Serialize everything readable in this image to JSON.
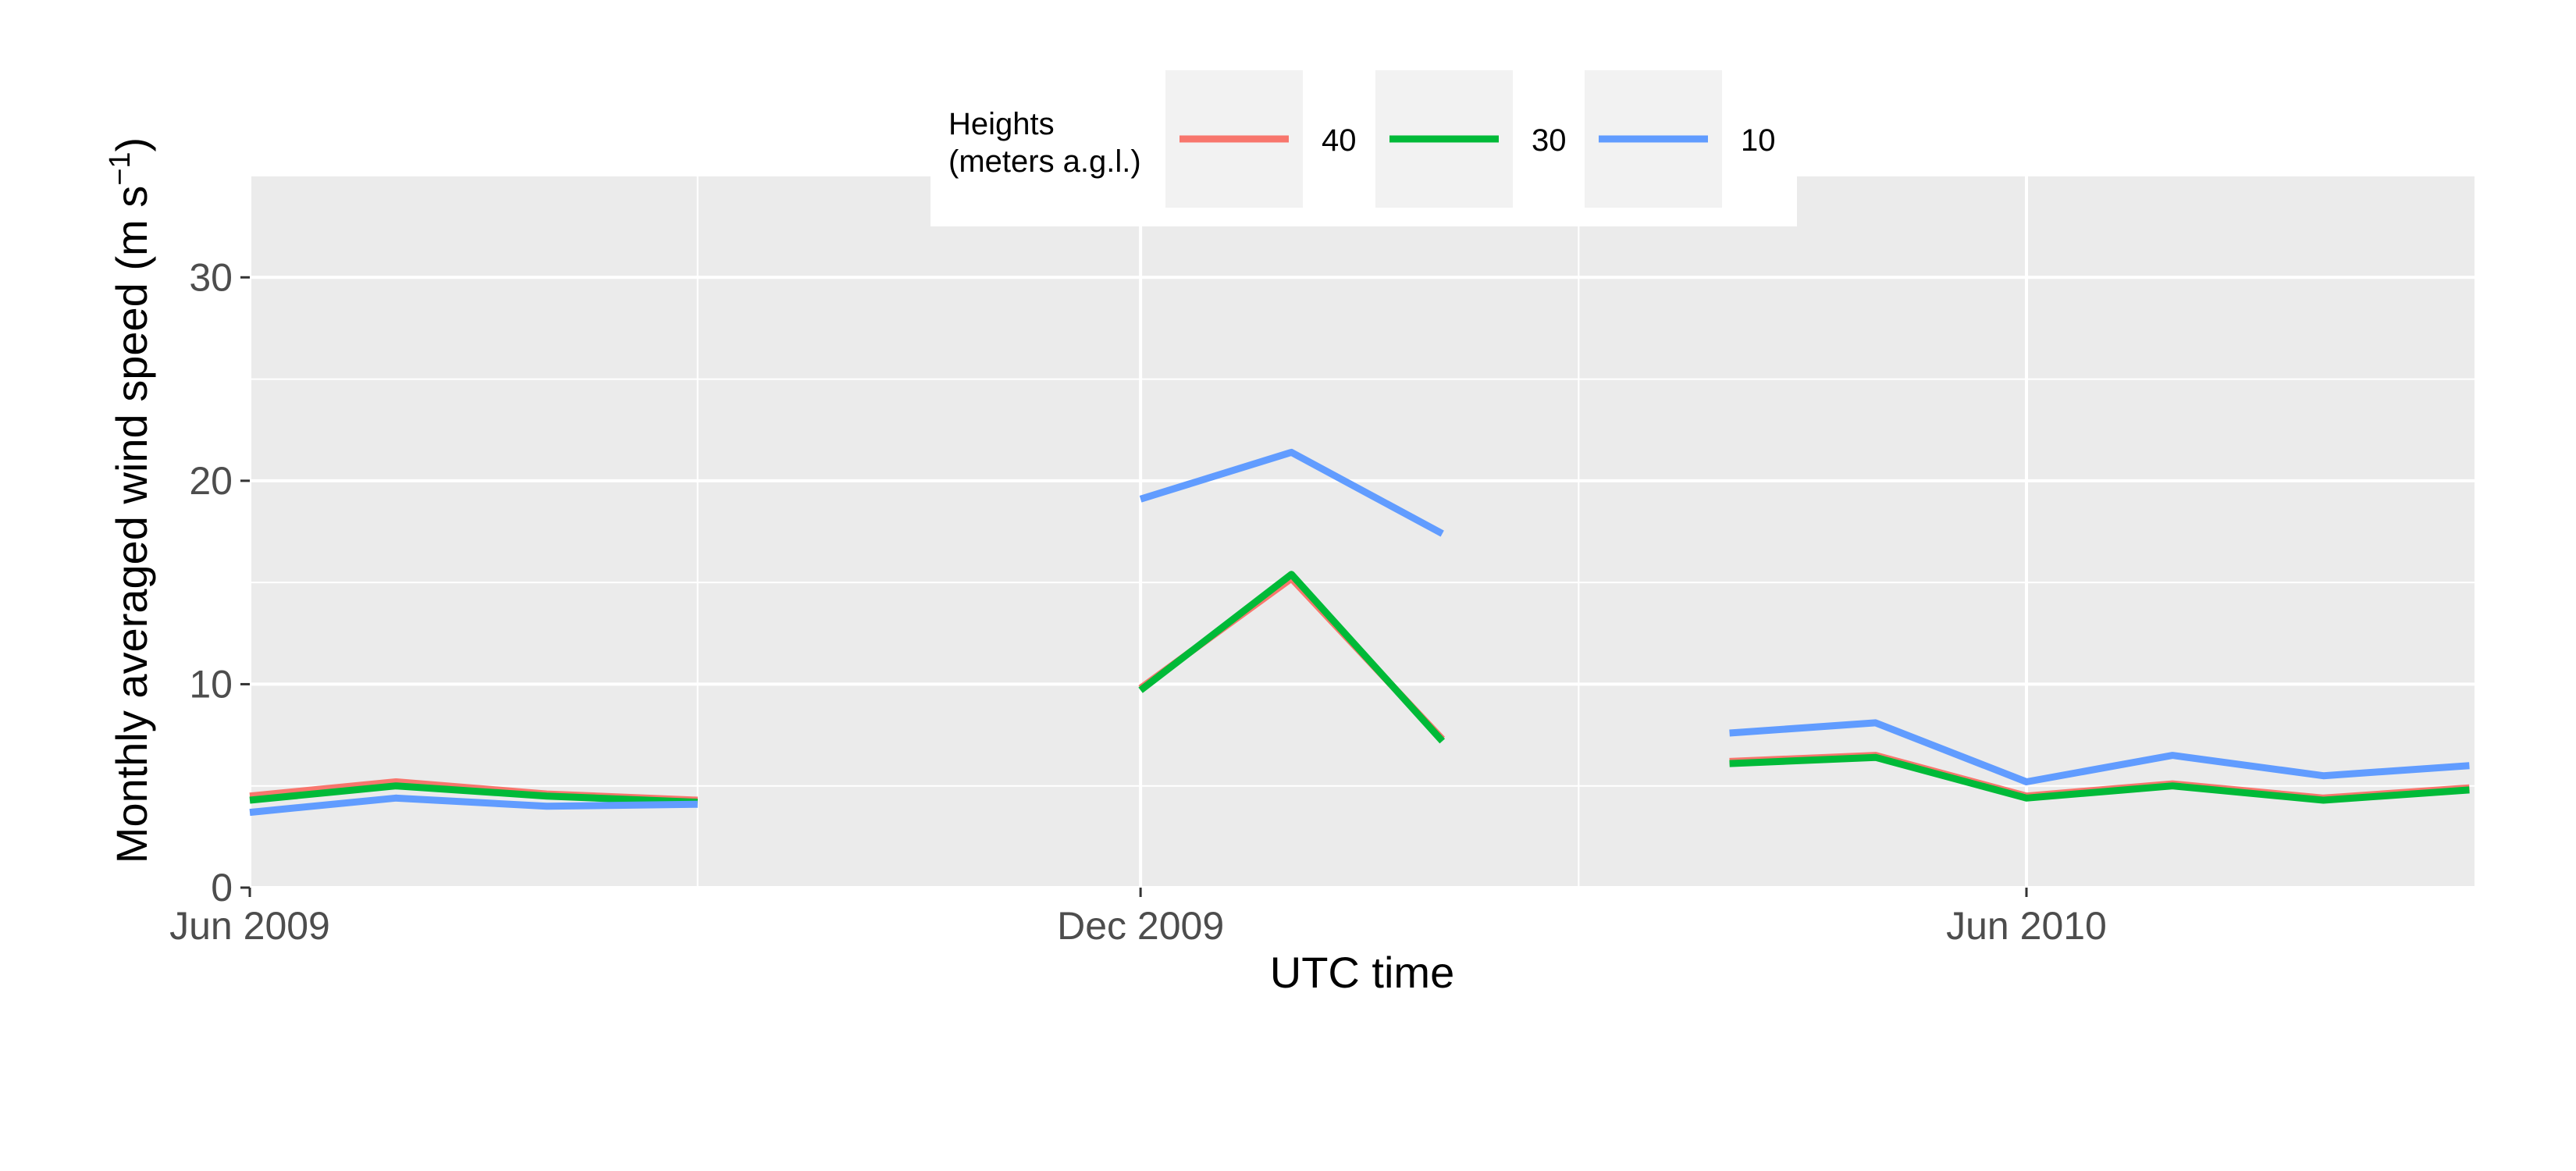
{
  "chart_data": {
    "type": "line",
    "title": "",
    "xlabel": "UTC time",
    "ylabel_main": "Monthly averaged wind speed (m s",
    "ylabel_sup": "−1",
    "ylabel_end": ")",
    "ylim": [
      0,
      35
    ],
    "yticks": [
      0,
      10,
      20,
      30
    ],
    "ytick_labels": [
      "0",
      "10",
      "20",
      "30"
    ],
    "xlim": [
      "2009-06-01",
      "2010-08-01"
    ],
    "xticks": [
      {
        "date": "2009-06-01",
        "label": "Jun 2009"
      },
      {
        "date": "2009-12-01",
        "label": "Dec 2009"
      },
      {
        "date": "2010-06-01",
        "label": "Jun 2010"
      }
    ],
    "xminor": [
      "2009-09-01",
      "2010-03-01"
    ],
    "grid": true,
    "legend": {
      "placement": "top",
      "title_line1": "Heights",
      "title_line2": "(meters a.g.l.)"
    },
    "series": [
      {
        "name": "40",
        "color": "#F8766D",
        "segments": [
          [
            [
              "2009-06-01",
              4.5
            ],
            [
              "2009-07-01",
              5.2
            ],
            [
              "2009-08-01",
              4.6
            ],
            [
              "2009-09-01",
              4.3
            ]
          ],
          [
            [
              "2009-12-01",
              9.8
            ],
            [
              "2010-01-01",
              15.2
            ],
            [
              "2010-02-01",
              7.3
            ]
          ],
          [
            [
              "2010-04-01",
              6.2
            ],
            [
              "2010-05-01",
              6.5
            ],
            [
              "2010-06-01",
              4.5
            ],
            [
              "2010-07-01",
              5.1
            ],
            [
              "2010-08-01",
              4.4
            ],
            [
              "2010-08-31",
              4.9
            ]
          ]
        ]
      },
      {
        "name": "30",
        "color": "#00BA38",
        "segments": [
          [
            [
              "2009-06-01",
              4.3
            ],
            [
              "2009-07-01",
              5.0
            ],
            [
              "2009-08-01",
              4.5
            ],
            [
              "2009-09-01",
              4.2
            ]
          ],
          [
            [
              "2009-12-01",
              9.7
            ],
            [
              "2010-01-01",
              15.4
            ],
            [
              "2010-02-01",
              7.2
            ]
          ],
          [
            [
              "2010-04-01",
              6.1
            ],
            [
              "2010-05-01",
              6.4
            ],
            [
              "2010-06-01",
              4.4
            ],
            [
              "2010-07-01",
              5.0
            ],
            [
              "2010-08-01",
              4.3
            ],
            [
              "2010-08-31",
              4.8
            ]
          ]
        ]
      },
      {
        "name": "10",
        "color": "#619CFF",
        "segments": [
          [
            [
              "2009-06-01",
              3.7
            ],
            [
              "2009-07-01",
              4.4
            ],
            [
              "2009-08-01",
              4.0
            ],
            [
              "2009-09-01",
              4.1
            ]
          ],
          [
            [
              "2009-12-01",
              19.1
            ],
            [
              "2010-01-01",
              21.4
            ],
            [
              "2010-02-01",
              17.4
            ]
          ],
          [
            [
              "2010-04-01",
              7.6
            ],
            [
              "2010-05-01",
              8.1
            ],
            [
              "2010-06-01",
              5.2
            ],
            [
              "2010-07-01",
              6.5
            ],
            [
              "2010-08-01",
              5.5
            ],
            [
              "2010-08-31",
              6.0
            ]
          ]
        ]
      }
    ]
  }
}
